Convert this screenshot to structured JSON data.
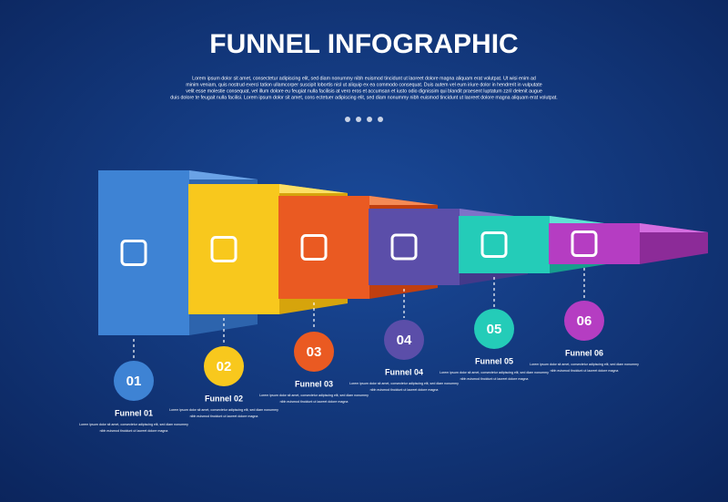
{
  "header": {
    "title": "FUNNEL INFOGRAPHIC",
    "description": [
      "Lorem ipsum dolor sit amet, consectetur adipiscing elit, sed diam nonummy nibh euismod tincidunt ut laoreet dolore magna aliquam erat volutpat. Ut wisi enim ad",
      "minim veniam, quis nostrud exerci tation ullamcorper suscipit lobortis nisl ut aliquip ex ea commodo consequat. Duis autem vel eum iriure dolor in hendrerit in vulputate",
      "velit esse molestie consequat, vel illum dolore eu feugiat nulla facilisis at vero eros et accumsan et iusto odio dignissim qui blandit praesent luptatum zzril delenit augue",
      "duis dolore te feugait nulla facilisi. Lorem ipsum dolor sit amet, cons ectetuer adipiscing elit, sed diam nonummy nibh euismod tincidunt ut laoreet dolore magna aliquam erat volutpat."
    ]
  },
  "steps": [
    {
      "number": "01",
      "label": "Funnel 01",
      "text": [
        "Lorem ipsum dolor sit amet, consectetur adipiscing elit, sed diam nonummy",
        "nibh euismod tincidunt ut laoreet dolore magna"
      ]
    },
    {
      "number": "02",
      "label": "Funnel 02",
      "text": [
        "Lorem ipsum dolor sit amet, consectetur adipiscing elit, sed diam nonummy",
        "nibh euismod tincidunt ut laoreet dolore magna"
      ]
    },
    {
      "number": "03",
      "label": "Funnel 03",
      "text": [
        "Lorem ipsum dolor sit amet, consectetur adipiscing elit, sed diam nonummy",
        "nibh euismod tincidunt ut laoreet dolore magna"
      ]
    },
    {
      "number": "04",
      "label": "Funnel 04",
      "text": [
        "Lorem ipsum dolor sit amet, consectetur adipiscing elit, sed diam nonummy",
        "nibh euismod tincidunt ut laoreet dolore magna"
      ]
    },
    {
      "number": "05",
      "label": "Funnel 05",
      "text": [
        "Lorem ipsum dolor sit amet, consectetur adipiscing elit, sed diam nonummy",
        "nibh euismod tincidunt ut laoreet dolore magna"
      ]
    },
    {
      "number": "06",
      "label": "Funnel 06",
      "text": [
        "Lorem ipsum dolor sit amet, consectetur adipiscing elit, sed diam nonummy",
        "nibh euismod tincidunt ut laoreet dolore magna"
      ]
    }
  ]
}
